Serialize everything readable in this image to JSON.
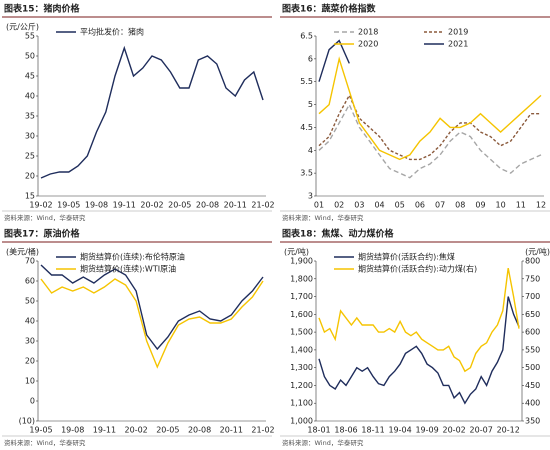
{
  "chart_data": [
    {
      "type": "line",
      "title": "图表15：猪肉价格",
      "source": "资料来源：Wind，华泰研究",
      "y_label": "(元/公斤)",
      "categories": [
        "19-02",
        null,
        null,
        "19-05",
        null,
        null,
        "19-08",
        null,
        null,
        "19-11",
        null,
        null,
        "20-02",
        null,
        null,
        "20-05",
        null,
        null,
        "20-08",
        null,
        null,
        "20-11",
        null,
        null,
        "21-02"
      ],
      "series": [
        {
          "name": "平均批发价：猪肉",
          "color": "#1f2d5c",
          "values": [
            19.5,
            20.5,
            21,
            21,
            22.5,
            25,
            31,
            36,
            45,
            52,
            45,
            47,
            50,
            49,
            46,
            42,
            42,
            49,
            50,
            48,
            42,
            40,
            44,
            46,
            39
          ]
        }
      ],
      "ylim": [
        15,
        55
      ],
      "yticks": [
        15,
        20,
        25,
        30,
        35,
        40,
        45,
        50,
        55
      ],
      "legend_columns": 1
    },
    {
      "type": "line",
      "title": "图表16：蔬菜价格指数",
      "source": "资料来源：Wind，华泰研究",
      "categories": [
        "01",
        null,
        "02",
        null,
        "03",
        null,
        "04",
        null,
        "05",
        null,
        "06",
        null,
        "07",
        null,
        "08",
        null,
        "09",
        null,
        "10",
        null,
        "11",
        null,
        "12"
      ],
      "series": [
        {
          "name": "2018",
          "color": "#a6a6a6",
          "dash": "5 3",
          "values": [
            4.0,
            4.2,
            4.6,
            5.0,
            4.5,
            4.2,
            3.9,
            3.6,
            3.5,
            3.4,
            3.6,
            3.7,
            3.9,
            4.2,
            4.4,
            4.3,
            4.0,
            3.8,
            3.6,
            3.5,
            3.7,
            3.8,
            3.9
          ]
        },
        {
          "name": "2019",
          "color": "#8b5a3c",
          "dash": "3 2",
          "values": [
            4.1,
            4.3,
            4.8,
            5.2,
            4.7,
            4.5,
            4.3,
            4.0,
            3.9,
            3.8,
            3.8,
            3.9,
            4.1,
            4.4,
            4.6,
            4.6,
            4.4,
            4.3,
            4.1,
            4.2,
            4.5,
            4.8,
            4.8
          ]
        },
        {
          "name": "2020",
          "color": "#f5c400",
          "values": [
            4.8,
            5.0,
            6.0,
            5.3,
            4.6,
            4.3,
            4.0,
            3.9,
            3.8,
            3.9,
            4.2,
            4.4,
            4.7,
            4.5,
            4.5,
            4.6,
            4.8,
            4.6,
            4.4,
            4.6,
            4.8,
            5.0,
            5.2
          ]
        },
        {
          "name": "2021",
          "color": "#1f2d5c",
          "values": [
            5.5,
            6.2,
            6.4,
            5.9,
            null,
            null,
            null,
            null,
            null,
            null,
            null,
            null,
            null,
            null,
            null,
            null,
            null,
            null,
            null,
            null,
            null,
            null,
            null
          ]
        }
      ],
      "ylim": [
        3,
        6.5
      ],
      "yticks": [
        3,
        3.5,
        4,
        4.5,
        5,
        5.5,
        6,
        6.5
      ],
      "legend_columns": 2
    },
    {
      "type": "line",
      "title": "图表17：原油价格",
      "source": "资料来源：Wind，华泰研究",
      "y_label": "(美元/桶)",
      "categories": [
        "19-05",
        null,
        null,
        "19-08",
        null,
        null,
        "19-11",
        null,
        null,
        "20-02",
        null,
        null,
        "20-05",
        null,
        null,
        "20-08",
        null,
        null,
        "20-11",
        null,
        null,
        "21-02"
      ],
      "series": [
        {
          "name": "期货结算价(连续):布伦特原油",
          "color": "#1f2d5c",
          "values": [
            68,
            63,
            63,
            59,
            62,
            59,
            63,
            66,
            63,
            55,
            33,
            26,
            32,
            40,
            43,
            45,
            41,
            40,
            43,
            50,
            55,
            62
          ]
        },
        {
          "name": "期货结算价(连续):WTI原油",
          "color": "#f5c400",
          "values": [
            61,
            54,
            57,
            55,
            57,
            54,
            57,
            61,
            58,
            50,
            30,
            17,
            29,
            38,
            41,
            42,
            39,
            39,
            41,
            47,
            52,
            60
          ]
        }
      ],
      "ylim": [
        -10,
        70
      ],
      "yticks": [
        {
          "value": -10,
          "label": "(10)"
        },
        0,
        10,
        20,
        30,
        40,
        50,
        60,
        70
      ],
      "legend_columns": 1
    },
    {
      "type": "line",
      "title": "图表18：焦煤、动力煤价格",
      "source": "资料来源：Wind，华泰研究",
      "y_label": "(元/吨)",
      "y2_label": "(元/吨)",
      "categories": [
        "18-01",
        null,
        null,
        null,
        null,
        "18-06",
        null,
        null,
        null,
        null,
        "18-11",
        null,
        null,
        null,
        null,
        "19-04",
        null,
        null,
        null,
        null,
        "19-09",
        null,
        null,
        null,
        null,
        "20-02",
        null,
        null,
        null,
        null,
        "20-07",
        null,
        null,
        null,
        null,
        "20-12",
        null,
        null
      ],
      "series": [
        {
          "name": "期货结算价(活跃合约):焦煤",
          "color": "#1f2d5c",
          "values": [
            1350,
            1250,
            1200,
            1180,
            1230,
            1200,
            1250,
            1300,
            1280,
            1300,
            1250,
            1210,
            1200,
            1250,
            1280,
            1320,
            1380,
            1400,
            1420,
            1380,
            1320,
            1300,
            1270,
            1200,
            1200,
            1130,
            1160,
            1100,
            1150,
            1180,
            1250,
            1200,
            1280,
            1330,
            1400,
            1700,
            1600,
            1530
          ]
        },
        {
          "name": "期货结算价(活跃合约):动力煤(右)",
          "color": "#f5c400",
          "axis": "y2",
          "values": [
            640,
            600,
            610,
            580,
            660,
            640,
            620,
            640,
            620,
            620,
            620,
            600,
            600,
            610,
            600,
            630,
            600,
            590,
            600,
            580,
            570,
            560,
            550,
            550,
            560,
            530,
            520,
            490,
            500,
            540,
            560,
            570,
            600,
            620,
            660,
            780,
            700,
            610
          ]
        }
      ],
      "ylim": [
        1000,
        1900
      ],
      "yticks": [
        {
          "value": 1000,
          "label": "1,000"
        },
        {
          "value": 1100,
          "label": "1,100"
        },
        {
          "value": 1200,
          "label": "1,200"
        },
        {
          "value": 1300,
          "label": "1,300"
        },
        {
          "value": 1400,
          "label": "1,400"
        },
        {
          "value": 1500,
          "label": "1,500"
        },
        {
          "value": 1600,
          "label": "1,600"
        },
        {
          "value": 1700,
          "label": "1,700"
        },
        {
          "value": 1800,
          "label": "1,800"
        },
        {
          "value": 1900,
          "label": "1,900"
        }
      ],
      "y2lim": [
        350,
        800
      ],
      "y2ticks": [
        350,
        400,
        450,
        500,
        550,
        600,
        650,
        700,
        750,
        800
      ],
      "legend_columns": 1
    }
  ]
}
